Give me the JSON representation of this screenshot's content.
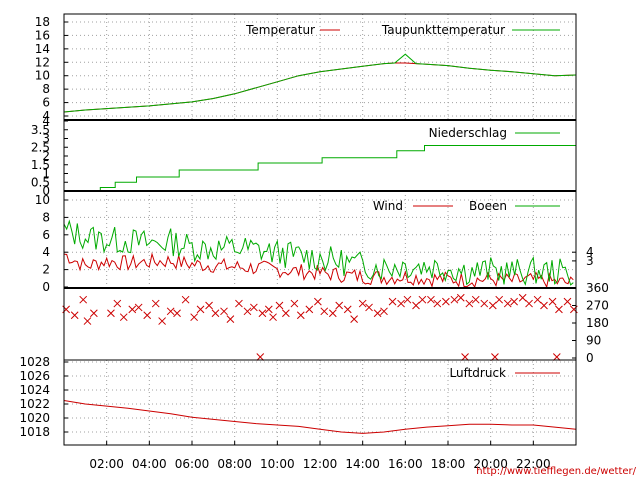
{
  "page": {
    "url": "http://www.tiefflegen.de/wetter/"
  },
  "colors": {
    "red": "#cc0000",
    "green": "#00aa00",
    "grid": "#a0a0a0",
    "frame": "#000000"
  },
  "chart_data": [
    {
      "id": "temp",
      "type": "line",
      "legend_position": "top-right",
      "grid": true,
      "ylim": [
        4,
        18
      ],
      "yticks": [
        4,
        6,
        8,
        10,
        12,
        14,
        16,
        18
      ],
      "ytick_labels": [
        "4",
        "6",
        "8",
        "10",
        "12",
        "14",
        "16",
        "18"
      ],
      "x": [
        0,
        1,
        2,
        3,
        4,
        5,
        6,
        7,
        8,
        9,
        10,
        11,
        12,
        13,
        14,
        15,
        15.5,
        16,
        16.5,
        17,
        18,
        19,
        20,
        21,
        22,
        23,
        24
      ],
      "series": [
        {
          "name": "Temperatur",
          "color": "#cc0000",
          "values": [
            4.6,
            4.9,
            5.1,
            5.3,
            5.5,
            5.8,
            6.1,
            6.6,
            7.3,
            8.2,
            9.1,
            10.0,
            10.6,
            11.0,
            11.4,
            11.8,
            11.9,
            11.9,
            11.8,
            11.7,
            11.5,
            11.1,
            10.8,
            10.6,
            10.3,
            10.0,
            10.1
          ]
        },
        {
          "name": "Taupunkttemperatur",
          "color": "#00aa00",
          "values": [
            4.6,
            4.9,
            5.1,
            5.3,
            5.5,
            5.8,
            6.1,
            6.6,
            7.3,
            8.2,
            9.1,
            10.0,
            10.6,
            11.0,
            11.4,
            11.8,
            11.9,
            13.2,
            11.8,
            11.7,
            11.5,
            11.1,
            10.8,
            10.6,
            10.3,
            10.0,
            10.1
          ]
        }
      ]
    },
    {
      "id": "rain",
      "type": "line",
      "legend_position": "top-right",
      "grid": false,
      "ylim": [
        0,
        4
      ],
      "yticks": [
        0,
        0.5,
        1,
        1.5,
        2,
        2.5,
        3,
        3.5,
        4
      ],
      "ytick_labels": [
        "0",
        "0.5",
        "1",
        "1.5",
        "2",
        "2.5",
        "3",
        "3.5",
        "4"
      ],
      "series": [
        {
          "name": "Niederschlag",
          "color": "#00aa00",
          "x": [
            1.7,
            1.7,
            2.4,
            2.4,
            3.4,
            3.4,
            5.4,
            5.4,
            9.1,
            9.1,
            12.1,
            12.1,
            15.6,
            15.6,
            16.9,
            16.9,
            24
          ],
          "values": [
            0.0,
            0.2,
            0.2,
            0.5,
            0.5,
            0.8,
            0.8,
            1.2,
            1.2,
            1.6,
            1.6,
            1.9,
            1.9,
            2.3,
            2.3,
            2.6,
            2.6
          ]
        }
      ]
    },
    {
      "id": "wind",
      "type": "line",
      "legend_position": "top-right",
      "grid": true,
      "ylim": [
        0,
        10
      ],
      "yticks": [
        0,
        2,
        4,
        6,
        8,
        10
      ],
      "ytick_labels": [
        "0",
        "2",
        "4",
        "6",
        "8",
        "10"
      ],
      "y2ticks": [
        3,
        4
      ],
      "y2tick_labels": [
        "3",
        "4"
      ],
      "x": [
        0,
        1,
        2,
        3,
        4,
        5,
        6,
        7,
        8,
        9,
        10,
        11,
        12,
        13,
        14,
        15,
        16,
        17,
        18,
        19,
        20,
        21,
        22,
        23,
        24
      ],
      "series": [
        {
          "name": "Wind",
          "color": "#cc0000",
          "values": [
            3.8,
            2.4,
            3.0,
            2.7,
            2.9,
            3.0,
            2.6,
            2.5,
            2.3,
            2.2,
            2.0,
            1.8,
            1.6,
            1.4,
            1.2,
            1.1,
            1.2,
            1.0,
            0.9,
            0.8,
            0.9,
            0.7,
            0.8,
            0.6,
            0.4
          ]
        },
        {
          "name": "Boeen",
          "color": "#00aa00",
          "values": [
            6.5,
            5.8,
            5.4,
            5.3,
            5.0,
            5.2,
            4.6,
            4.4,
            4.5,
            4.3,
            3.9,
            3.6,
            3.3,
            2.9,
            2.5,
            2.3,
            2.5,
            2.4,
            2.2,
            1.8,
            1.9,
            1.7,
            1.8,
            1.8,
            1.4
          ]
        }
      ]
    },
    {
      "id": "winddir",
      "type": "scatter",
      "marker": "x",
      "color": "#cc0000",
      "grid": false,
      "ylim": [
        0,
        360
      ],
      "y2ticks": [
        0,
        90,
        180,
        270,
        360
      ],
      "y2tick_labels": [
        "0",
        "90",
        "180",
        "270",
        "360"
      ],
      "series": [
        {
          "name": "",
          "x": [
            0.1,
            0.5,
            0.9,
            1.1,
            1.4,
            2.2,
            2.5,
            2.8,
            3.2,
            3.5,
            3.9,
            4.3,
            4.6,
            5.0,
            5.3,
            5.7,
            6.1,
            6.4,
            6.8,
            7.1,
            7.5,
            7.8,
            8.2,
            8.6,
            8.9,
            9.3,
            9.6,
            9.8,
            10.1,
            10.4,
            10.8,
            11.1,
            11.5,
            11.9,
            12.2,
            12.6,
            12.9,
            13.3,
            13.6,
            14.0,
            14.3,
            14.7,
            15.0,
            15.4,
            15.8,
            16.1,
            16.5,
            16.8,
            17.2,
            17.5,
            17.9,
            18.3,
            18.6,
            19.0,
            19.3,
            19.7,
            20.1,
            20.4,
            20.8,
            21.1,
            21.5,
            21.8,
            22.2,
            22.5,
            22.9,
            23.2,
            23.6,
            23.9,
            9.2,
            18.8,
            20.2,
            23.1
          ],
          "values": [
            250,
            220,
            300,
            190,
            230,
            230,
            280,
            210,
            250,
            260,
            220,
            280,
            190,
            240,
            230,
            300,
            210,
            250,
            270,
            230,
            240,
            200,
            280,
            240,
            260,
            230,
            250,
            210,
            270,
            230,
            280,
            220,
            250,
            290,
            240,
            230,
            270,
            250,
            200,
            280,
            260,
            230,
            240,
            290,
            280,
            300,
            270,
            300,
            300,
            280,
            290,
            300,
            310,
            280,
            300,
            280,
            270,
            300,
            280,
            290,
            310,
            280,
            300,
            270,
            290,
            250,
            290,
            250,
            5,
            5,
            5,
            5
          ]
        }
      ]
    },
    {
      "id": "pressure",
      "type": "line",
      "legend_position": "top-right",
      "grid": true,
      "ylim": [
        1016,
        1029
      ],
      "yticks": [
        1018,
        1020,
        1022,
        1024,
        1026,
        1028
      ],
      "ytick_labels": [
        "1018",
        "1020",
        "1022",
        "1024",
        "1026",
        "1028"
      ],
      "x": [
        0,
        1,
        2,
        3,
        4,
        5,
        6,
        7,
        8,
        9,
        10,
        11,
        12,
        13,
        14,
        15,
        16,
        17,
        18,
        19,
        20,
        21,
        22,
        23,
        24
      ],
      "series": [
        {
          "name": "Luftdruck",
          "color": "#cc0000",
          "values": [
            1022.5,
            1022.0,
            1021.7,
            1021.4,
            1021.0,
            1020.6,
            1020.1,
            1019.8,
            1019.5,
            1019.2,
            1019.0,
            1018.8,
            1018.4,
            1018.0,
            1017.8,
            1018.0,
            1018.4,
            1018.7,
            1018.9,
            1019.1,
            1019.1,
            1019.0,
            1019.0,
            1018.7,
            1018.4
          ]
        }
      ]
    }
  ],
  "x_axis": {
    "ticks": [
      2,
      4,
      6,
      8,
      10,
      12,
      14,
      16,
      18,
      20,
      22
    ],
    "tick_labels": [
      "02:00",
      "04:00",
      "06:00",
      "08:00",
      "10:00",
      "12:00",
      "14:00",
      "16:00",
      "18:00",
      "20:00",
      "22:00"
    ]
  }
}
